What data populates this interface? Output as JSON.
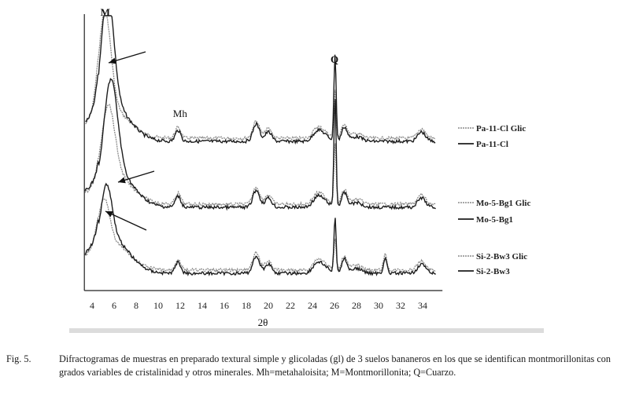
{
  "chart_data": {
    "type": "line",
    "xlabel": "2θ",
    "ylabel": "",
    "x_ticks": [
      4,
      6,
      8,
      10,
      12,
      14,
      16,
      18,
      20,
      22,
      24,
      26,
      28,
      30,
      32,
      34
    ],
    "xlim": [
      3.3,
      35.8
    ],
    "peak_labels": [
      {
        "text": "M",
        "x": 5.2
      },
      {
        "text": "Mh",
        "x": 11.7
      },
      {
        "text": "Q",
        "x": 26.0
      }
    ],
    "legend": "right",
    "series": [
      {
        "name": "Pa-11-Cl Glic",
        "style": "grey",
        "group": 0
      },
      {
        "name": "Pa-11-Cl",
        "style": "black",
        "group": 0
      },
      {
        "name": "Mo-5-Bg1 Glic",
        "style": "grey",
        "group": 1
      },
      {
        "name": "Mo-5-Bg1",
        "style": "black",
        "group": 1
      },
      {
        "name": "Si-2-Bw3 Glic",
        "style": "grey",
        "group": 2
      },
      {
        "name": "Si-2-Bw3",
        "style": "black",
        "group": 2
      }
    ]
  },
  "caption": {
    "number": "Fig. 5.",
    "text": "Difractogramas de muestras en preparado textural simple y glicoladas (gl) de 3 suelos bananeros en los que se identifican montmorillonitas con grados variables de cristalinidad y otros minerales. Mh=metahaloisita; M=Montmorillonita; Q=Cuarzo."
  }
}
